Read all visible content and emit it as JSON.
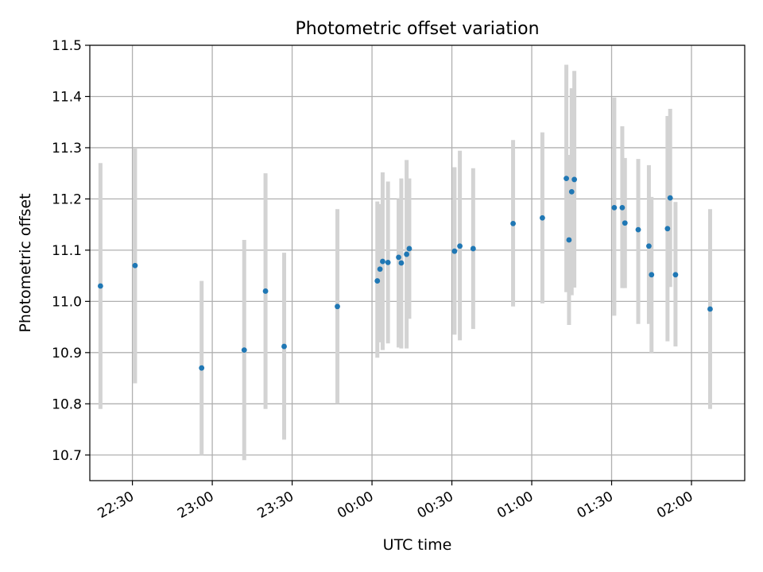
{
  "chart_data": {
    "type": "scatter",
    "title": "Photometric offset variation",
    "xlabel": "UTC time",
    "ylabel": "Photometric offset",
    "ylim": [
      10.65,
      11.5
    ],
    "xlim": [
      "22:14",
      "02:20"
    ],
    "grid": true,
    "colors": {
      "point": "#1f77b4",
      "errorbar": "#d3d3d3",
      "grid": "#b0b0b0"
    },
    "y_ticks": [
      "10.7",
      "10.8",
      "10.9",
      "11.0",
      "11.1",
      "11.2",
      "11.3",
      "11.4",
      "11.5"
    ],
    "x_ticks": [
      "22:30",
      "23:00",
      "23:30",
      "00:00",
      "00:30",
      "01:00",
      "01:30",
      "02:00"
    ],
    "points": [
      {
        "x": "22:18",
        "y": 11.03,
        "lo": 10.79,
        "hi": 11.27
      },
      {
        "x": "22:31",
        "y": 11.07,
        "lo": 10.84,
        "hi": 11.3
      },
      {
        "x": "22:56",
        "y": 10.87,
        "lo": 10.7,
        "hi": 11.04
      },
      {
        "x": "23:12",
        "y": 10.905,
        "lo": 10.69,
        "hi": 11.12
      },
      {
        "x": "23:20",
        "y": 11.02,
        "lo": 10.79,
        "hi": 11.25
      },
      {
        "x": "23:27",
        "y": 10.912,
        "lo": 10.73,
        "hi": 11.095
      },
      {
        "x": "23:47",
        "y": 10.99,
        "lo": 10.8,
        "hi": 11.18
      },
      {
        "x": "00:02",
        "y": 11.04,
        "lo": 10.89,
        "hi": 11.195
      },
      {
        "x": "00:03",
        "y": 11.063,
        "lo": 10.92,
        "hi": 11.19
      },
      {
        "x": "00:04",
        "y": 11.078,
        "lo": 10.905,
        "hi": 11.252
      },
      {
        "x": "00:06",
        "y": 11.076,
        "lo": 10.918,
        "hi": 11.234
      },
      {
        "x": "00:10",
        "y": 11.086,
        "lo": 10.91,
        "hi": 11.2
      },
      {
        "x": "00:11",
        "y": 11.075,
        "lo": 10.908,
        "hi": 11.24
      },
      {
        "x": "00:13",
        "y": 11.092,
        "lo": 10.908,
        "hi": 11.276
      },
      {
        "x": "00:14",
        "y": 11.103,
        "lo": 10.966,
        "hi": 11.24
      },
      {
        "x": "00:31",
        "y": 11.098,
        "lo": 10.935,
        "hi": 11.262
      },
      {
        "x": "00:33",
        "y": 11.108,
        "lo": 10.924,
        "hi": 11.294
      },
      {
        "x": "00:38",
        "y": 11.103,
        "lo": 10.946,
        "hi": 11.26
      },
      {
        "x": "00:53",
        "y": 11.152,
        "lo": 10.99,
        "hi": 11.315
      },
      {
        "x": "01:04",
        "y": 11.163,
        "lo": 10.996,
        "hi": 11.33
      },
      {
        "x": "01:13",
        "y": 11.24,
        "lo": 11.018,
        "hi": 11.462
      },
      {
        "x": "01:14",
        "y": 11.12,
        "lo": 10.954,
        "hi": 11.286
      },
      {
        "x": "01:15",
        "y": 11.214,
        "lo": 11.012,
        "hi": 11.416
      },
      {
        "x": "01:16",
        "y": 11.238,
        "lo": 11.027,
        "hi": 11.45
      },
      {
        "x": "01:31",
        "y": 11.183,
        "lo": 10.972,
        "hi": 11.398
      },
      {
        "x": "01:34",
        "y": 11.183,
        "lo": 11.026,
        "hi": 11.342
      },
      {
        "x": "01:35",
        "y": 11.153,
        "lo": 11.026,
        "hi": 11.28
      },
      {
        "x": "01:40",
        "y": 11.14,
        "lo": 10.956,
        "hi": 11.278
      },
      {
        "x": "01:44",
        "y": 11.108,
        "lo": 10.956,
        "hi": 11.266
      },
      {
        "x": "01:45",
        "y": 11.052,
        "lo": 10.9,
        "hi": 11.204
      },
      {
        "x": "01:51",
        "y": 11.142,
        "lo": 10.922,
        "hi": 11.362
      },
      {
        "x": "01:52",
        "y": 11.202,
        "lo": 11.028,
        "hi": 11.376
      },
      {
        "x": "01:54",
        "y": 11.052,
        "lo": 10.912,
        "hi": 11.194
      },
      {
        "x": "02:07",
        "y": 10.985,
        "lo": 10.79,
        "hi": 11.18
      }
    ]
  }
}
